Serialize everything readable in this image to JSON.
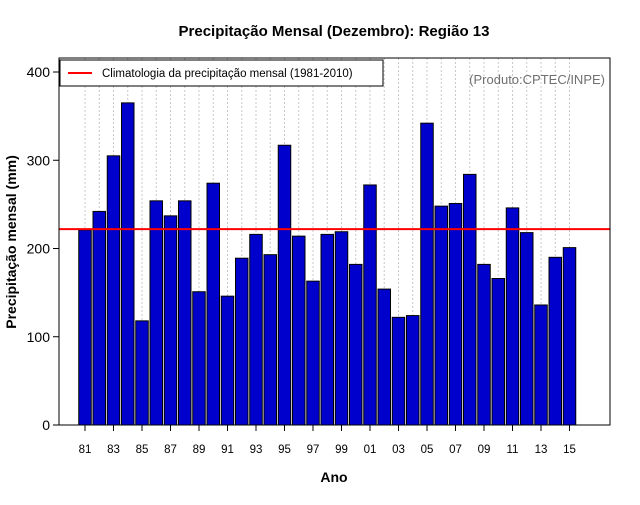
{
  "chart_data": {
    "type": "bar",
    "title": "Precipitação Mensal (Dezembro): Região 13",
    "xlabel": "Ano",
    "ylabel": "Precipitação mensal (mm)",
    "source_note": "(Produto:CPTEC/INPE)",
    "ylim": [
      0,
      400
    ],
    "yticks": [
      0,
      100,
      200,
      300,
      400
    ],
    "categories": [
      "1981",
      "1982",
      "1983",
      "1984",
      "1985",
      "1986",
      "1987",
      "1988",
      "1989",
      "1990",
      "1991",
      "1992",
      "1993",
      "1994",
      "1995",
      "1996",
      "1997",
      "1998",
      "1999",
      "2000",
      "2001",
      "2002",
      "2003",
      "2004",
      "2005",
      "2006",
      "2007",
      "2008",
      "2009",
      "2010",
      "2011",
      "2012",
      "2013",
      "2014",
      "2015"
    ],
    "xtick_labels": [
      "81",
      "83",
      "85",
      "87",
      "89",
      "91",
      "93",
      "95",
      "97",
      "99",
      "01",
      "03",
      "05",
      "07",
      "09",
      "11",
      "13",
      "15"
    ],
    "values": [
      221,
      242,
      305,
      365,
      118,
      254,
      237,
      254,
      151,
      274,
      146,
      189,
      216,
      193,
      317,
      214,
      163,
      216,
      219,
      182,
      272,
      154,
      122,
      124,
      342,
      248,
      251,
      284,
      182,
      166,
      246,
      218,
      136,
      190,
      201
    ],
    "climatology": {
      "label": "Climatologia da precipitação mensal (1981-2010)",
      "value": 222,
      "color": "#ff0000"
    },
    "bar_color": "#0000cd",
    "grid": true,
    "legend_position": "top-left"
  }
}
